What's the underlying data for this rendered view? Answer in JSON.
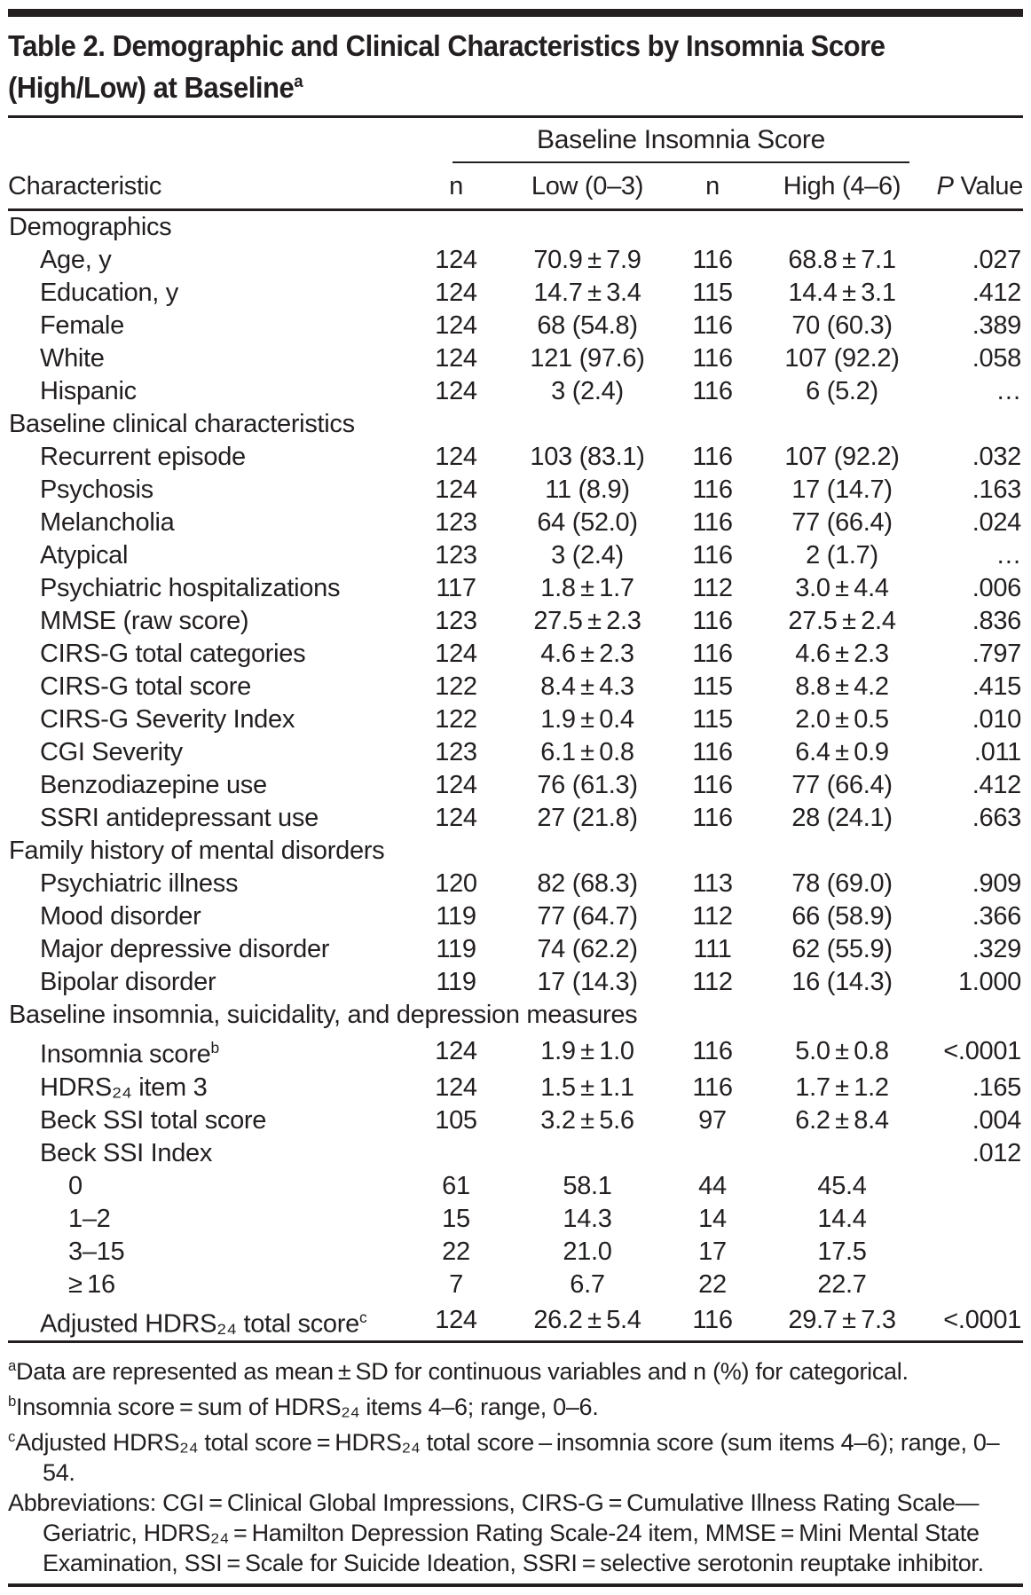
{
  "colors": {
    "ink": "#231f20",
    "background": "#ffffff"
  },
  "title": {
    "line1": "Table 2. Demographic and Clinical Characteristics by Insomnia Score",
    "line2": "(High/Low) at Baseline",
    "sup": "a"
  },
  "table": {
    "span_header": "Baseline Insomnia Score",
    "columns": [
      "Characteristic",
      "n",
      "Low (0–3)",
      "n",
      "High (4–6)"
    ],
    "p_header": {
      "italic": "P",
      "rest": "Value"
    },
    "rows": [
      {
        "type": "section",
        "label": "Demographics"
      },
      {
        "type": "item",
        "label": "Age, y",
        "n1": "124",
        "low": "70.9 ± 7.9",
        "n2": "116",
        "high": "68.8 ± 7.1",
        "p": ".027"
      },
      {
        "type": "item",
        "label": "Education, y",
        "n1": "124",
        "low": "14.7 ± 3.4",
        "n2": "115",
        "high": "14.4 ± 3.1",
        "p": ".412"
      },
      {
        "type": "item",
        "label": "Female",
        "n1": "124",
        "low": "68 (54.8)",
        "n2": "116",
        "high": "70 (60.3)",
        "p": ".389"
      },
      {
        "type": "item",
        "label": "White",
        "n1": "124",
        "low": "121 (97.6)",
        "n2": "116",
        "high": "107 (92.2)",
        "p": ".058"
      },
      {
        "type": "item",
        "label": "Hispanic",
        "n1": "124",
        "low": "3 (2.4)",
        "n2": "116",
        "high": "6 (5.2)",
        "p": "…"
      },
      {
        "type": "section",
        "label": "Baseline clinical characteristics"
      },
      {
        "type": "item",
        "label": "Recurrent episode",
        "n1": "124",
        "low": "103 (83.1)",
        "n2": "116",
        "high": "107 (92.2)",
        "p": ".032"
      },
      {
        "type": "item",
        "label": "Psychosis",
        "n1": "124",
        "low": "11 (8.9)",
        "n2": "116",
        "high": "17 (14.7)",
        "p": ".163"
      },
      {
        "type": "item",
        "label": "Melancholia",
        "n1": "123",
        "low": "64 (52.0)",
        "n2": "116",
        "high": "77 (66.4)",
        "p": ".024"
      },
      {
        "type": "item",
        "label": "Atypical",
        "n1": "123",
        "low": "3 (2.4)",
        "n2": "116",
        "high": "2 (1.7)",
        "p": "…"
      },
      {
        "type": "item",
        "label": "Psychiatric hospitalizations",
        "n1": "117",
        "low": "1.8 ± 1.7",
        "n2": "112",
        "high": "3.0 ± 4.4",
        "p": ".006"
      },
      {
        "type": "item",
        "label": "MMSE (raw score)",
        "n1": "123",
        "low": "27.5 ± 2.3",
        "n2": "116",
        "high": "27.5 ± 2.4",
        "p": ".836"
      },
      {
        "type": "item",
        "label": "CIRS-G total categories",
        "n1": "124",
        "low": "4.6 ± 2.3",
        "n2": "116",
        "high": "4.6 ± 2.3",
        "p": ".797"
      },
      {
        "type": "item",
        "label": "CIRS-G total score",
        "n1": "122",
        "low": "8.4 ± 4.3",
        "n2": "115",
        "high": "8.8 ± 4.2",
        "p": ".415"
      },
      {
        "type": "item",
        "label": "CIRS-G Severity Index",
        "n1": "122",
        "low": "1.9 ± 0.4",
        "n2": "115",
        "high": "2.0 ± 0.5",
        "p": ".010"
      },
      {
        "type": "item",
        "label": "CGI Severity",
        "n1": "123",
        "low": "6.1 ± 0.8",
        "n2": "116",
        "high": "6.4 ± 0.9",
        "p": ".011"
      },
      {
        "type": "item",
        "label": "Benzodiazepine use",
        "n1": "124",
        "low": "76 (61.3)",
        "n2": "116",
        "high": "77 (66.4)",
        "p": ".412"
      },
      {
        "type": "item",
        "label": "SSRI antidepressant use",
        "n1": "124",
        "low": "27 (21.8)",
        "n2": "116",
        "high": "28 (24.1)",
        "p": ".663"
      },
      {
        "type": "section",
        "label": "Family history of mental disorders"
      },
      {
        "type": "item",
        "label": "Psychiatric illness",
        "n1": "120",
        "low": "82 (68.3)",
        "n2": "113",
        "high": "78 (69.0)",
        "p": ".909"
      },
      {
        "type": "item",
        "label": "Mood disorder",
        "n1": "119",
        "low": "77 (64.7)",
        "n2": "112",
        "high": "66 (58.9)",
        "p": ".366"
      },
      {
        "type": "item",
        "label": "Major depressive disorder",
        "n1": "119",
        "low": "74 (62.2)",
        "n2": "111",
        "high": "62 (55.9)",
        "p": ".329"
      },
      {
        "type": "item",
        "label": "Bipolar disorder",
        "n1": "119",
        "low": "17 (14.3)",
        "n2": "112",
        "high": "16 (14.3)",
        "p": "1.000"
      },
      {
        "type": "section",
        "label": "Baseline insomnia, suicidality, and depression measures"
      },
      {
        "type": "item",
        "label": "Insomnia score",
        "sup": "b",
        "n1": "124",
        "low": "1.9 ± 1.0",
        "n2": "116",
        "high": "5.0 ± 0.8",
        "p": "<.0001"
      },
      {
        "type": "item",
        "label": "HDRS₂₄ item 3",
        "n1": "124",
        "low": "1.5 ± 1.1",
        "n2": "116",
        "high": "1.7 ± 1.2",
        "p": ".165"
      },
      {
        "type": "item",
        "label": "Beck SSI total score",
        "n1": "105",
        "low": "3.2 ± 5.6",
        "n2": "97",
        "high": "6.2 ± 8.4",
        "p": ".004"
      },
      {
        "type": "item",
        "label": "Beck SSI Index",
        "n1": "",
        "low": "",
        "n2": "",
        "high": "",
        "p": ".012"
      },
      {
        "type": "sub",
        "label": "0",
        "n1": "61",
        "low": "58.1",
        "n2": "44",
        "high": "45.4",
        "p": ""
      },
      {
        "type": "sub",
        "label": "1–2",
        "n1": "15",
        "low": "14.3",
        "n2": "14",
        "high": "14.4",
        "p": ""
      },
      {
        "type": "sub",
        "label": "3–15",
        "n1": "22",
        "low": "21.0",
        "n2": "17",
        "high": "17.5",
        "p": ""
      },
      {
        "type": "sub",
        "label": "≥ 16",
        "n1": "7",
        "low": "6.7",
        "n2": "22",
        "high": "22.7",
        "p": ""
      },
      {
        "type": "item",
        "label": "Adjusted HDRS₂₄ total score",
        "sup": "c",
        "n1": "124",
        "low": "26.2 ± 5.4",
        "n2": "116",
        "high": "29.7 ± 7.3",
        "p": "<.0001"
      }
    ]
  },
  "footnotes": [
    {
      "marker": "a",
      "text": "Data are represented as mean ± SD for continuous variables and n (%) for categorical."
    },
    {
      "marker": "b",
      "text": "Insomnia score = sum of HDRS₂₄ items 4–6; range, 0–6."
    },
    {
      "marker": "c",
      "text": "Adjusted HDRS₂₄ total score = HDRS₂₄ total score – insomnia score (sum items 4–6); range, 0–54."
    },
    {
      "marker": "",
      "text": "Abbreviations: CGI = Clinical Global Impressions, CIRS-G = Cumulative Illness Rating Scale—Geriatric, HDRS₂₄ = Hamilton Depression Rating Scale-24 item, MMSE = Mini Mental State Examination, SSI = Scale for Suicide Ideation, SSRI = selective serotonin reuptake inhibitor."
    }
  ]
}
